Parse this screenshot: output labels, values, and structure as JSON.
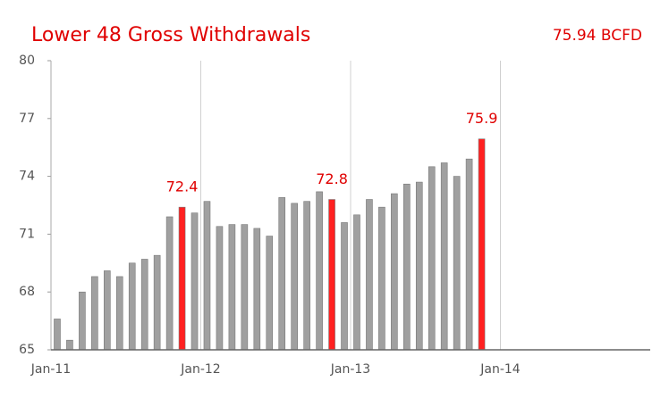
{
  "chart_data": {
    "type": "bar",
    "title": "Lower 48 Gross Withdrawals",
    "annotation": "75.94 BCFD",
    "x": [
      0,
      1,
      2,
      3,
      4,
      5,
      6,
      7,
      8,
      9,
      10,
      11,
      12,
      13,
      14,
      15,
      16,
      17,
      18,
      19,
      20,
      21,
      22,
      23,
      24,
      25,
      26,
      27,
      28,
      29,
      30,
      31,
      32,
      33,
      34
    ],
    "values": [
      66.6,
      65.5,
      68.0,
      68.8,
      69.1,
      68.8,
      69.5,
      69.7,
      69.9,
      71.9,
      72.4,
      72.1,
      72.7,
      71.4,
      71.5,
      71.5,
      71.3,
      70.9,
      72.9,
      72.6,
      72.7,
      73.2,
      72.8,
      71.6,
      72.0,
      72.8,
      72.4,
      73.1,
      73.6,
      73.7,
      74.5,
      74.7,
      74.0,
      74.9,
      75.94
    ],
    "value_labels": [
      null,
      null,
      null,
      null,
      null,
      null,
      null,
      null,
      null,
      null,
      "72.4",
      null,
      null,
      null,
      null,
      null,
      null,
      null,
      null,
      null,
      null,
      null,
      "72.8",
      null,
      null,
      null,
      null,
      null,
      null,
      null,
      null,
      null,
      null,
      null,
      "75.9"
    ],
    "colors": [
      "#a0a0a0",
      "#a0a0a0",
      "#a0a0a0",
      "#a0a0a0",
      "#a0a0a0",
      "#a0a0a0",
      "#a0a0a0",
      "#a0a0a0",
      "#a0a0a0",
      "#a0a0a0",
      "#ff2020",
      "#a0a0a0",
      "#a0a0a0",
      "#a0a0a0",
      "#a0a0a0",
      "#a0a0a0",
      "#a0a0a0",
      "#a0a0a0",
      "#a0a0a0",
      "#a0a0a0",
      "#a0a0a0",
      "#a0a0a0",
      "#ff2020",
      "#a0a0a0",
      "#a0a0a0",
      "#a0a0a0",
      "#a0a0a0",
      "#a0a0a0",
      "#a0a0a0",
      "#a0a0a0",
      "#a0a0a0",
      "#a0a0a0",
      "#a0a0a0",
      "#a0a0a0",
      "#ff2020"
    ],
    "xlim": [
      0,
      48
    ],
    "xticks": [
      {
        "value": 0,
        "label": "Jan-11"
      },
      {
        "value": 12,
        "label": "Jan-12"
      },
      {
        "value": 24,
        "label": "Jan-13"
      },
      {
        "value": 36,
        "label": "Jan-14"
      }
    ],
    "ylim": [
      65,
      80
    ],
    "yticks": [
      65,
      68,
      71,
      74,
      77,
      80
    ],
    "grid": "x",
    "title_color": "#e00000"
  }
}
